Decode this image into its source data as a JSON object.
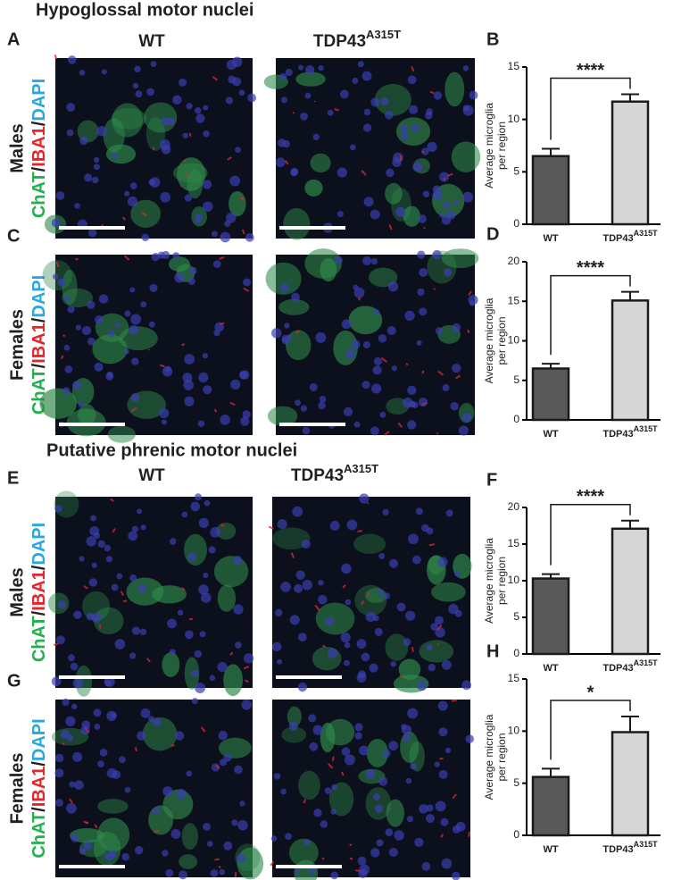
{
  "figure": {
    "sections": [
      "Hypoglossal motor nuclei",
      "Putative phrenic motor nuclei"
    ],
    "panels": [
      "A",
      "C",
      "E",
      "G"
    ],
    "column_headers": [
      [
        {
          "text": "WT"
        },
        {
          "text": "TDP43",
          "sup": "A315T"
        }
      ],
      [
        {
          "text": "WT"
        },
        {
          "text": "TDP43",
          "sup": "A315T"
        }
      ]
    ],
    "row_labels": [
      "Males",
      "Females",
      "Males",
      "Females"
    ],
    "stain": [
      {
        "text": "ChAT",
        "color": "#22b14c"
      },
      {
        "text": "/",
        "color": "#231f20"
      },
      {
        "text": "IBA1",
        "color": "#e8242a"
      },
      {
        "text": "/",
        "color": "#231f20"
      },
      {
        "text": "DAPI",
        "color": "#29a8e0"
      }
    ]
  },
  "chart_data": [
    {
      "type": "bar",
      "panel": "B",
      "ylabel": [
        "Average microglia",
        "per region"
      ],
      "categories": [
        "WT",
        "TDP43"
      ],
      "category_sup": [
        null,
        "A315T"
      ],
      "values": [
        6.5,
        11.7
      ],
      "errors": [
        0.7,
        0.7
      ],
      "colors": [
        "#595959",
        "#d6d6d6"
      ],
      "significance": "****",
      "ylim": [
        0,
        15
      ],
      "yticks": [
        0,
        5,
        10,
        15
      ]
    },
    {
      "type": "bar",
      "panel": "D",
      "ylabel": [
        "Average microglia",
        "per region"
      ],
      "categories": [
        "WT",
        "TDP43"
      ],
      "category_sup": [
        null,
        "A315T"
      ],
      "values": [
        6.5,
        15.1
      ],
      "errors": [
        0.6,
        1.1
      ],
      "colors": [
        "#595959",
        "#d6d6d6"
      ],
      "significance": "****",
      "ylim": [
        0,
        20
      ],
      "yticks": [
        0,
        5,
        10,
        15,
        20
      ]
    },
    {
      "type": "bar",
      "panel": "F",
      "ylabel": [
        "Average microglia",
        "per region"
      ],
      "categories": [
        "WT",
        "TDP43"
      ],
      "category_sup": [
        null,
        "A315T"
      ],
      "values": [
        10.3,
        17.1
      ],
      "errors": [
        0.6,
        1.1
      ],
      "colors": [
        "#595959",
        "#d6d6d6"
      ],
      "significance": "****",
      "ylim": [
        0,
        20
      ],
      "yticks": [
        0,
        5,
        10,
        15,
        20
      ]
    },
    {
      "type": "bar",
      "panel": "H",
      "ylabel": [
        "Average microglia",
        "per region"
      ],
      "categories": [
        "WT",
        "TDP43"
      ],
      "category_sup": [
        null,
        "A315T"
      ],
      "values": [
        5.6,
        9.9
      ],
      "errors": [
        0.8,
        1.5
      ],
      "colors": [
        "#595959",
        "#d6d6d6"
      ],
      "significance": "*",
      "ylim": [
        0,
        15
      ],
      "yticks": [
        0,
        5,
        10,
        15
      ]
    }
  ]
}
